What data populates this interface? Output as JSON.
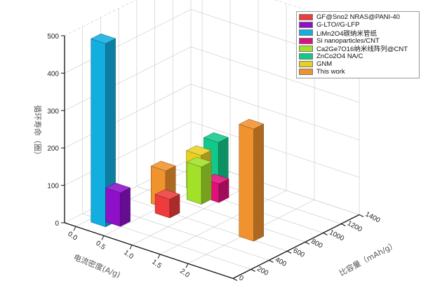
{
  "chart_data": {
    "type": "bar3d",
    "xlabel": "电流密度(A/g)",
    "ylabel": "比容量（mAh/g）",
    "zlabel": "循环寿命（圈）",
    "xlim": [
      -0.2,
      2.8
    ],
    "ylim": [
      0,
      1400
    ],
    "zlim": [
      0,
      500
    ],
    "x_ticks": [
      "0.0",
      "0.5",
      "1.0",
      "1.5",
      "2.0"
    ],
    "y_ticks": [
      "0",
      "200",
      "400",
      "600",
      "800",
      "1000",
      "1200",
      "1400"
    ],
    "z_ticks": [
      "0",
      "100",
      "200",
      "300",
      "400",
      "500"
    ],
    "grid": true,
    "legend_position": "top-right",
    "series": [
      {
        "name": "GF@Sno2 NRAS@PANI-40",
        "color": "#ee3b3b",
        "points": [
          {
            "x": 0.7,
            "y": 580,
            "z": 50
          }
        ]
      },
      {
        "name": "G-LTO//G-LFP",
        "color": "#8e10c8",
        "points": [
          {
            "x": 0.35,
            "y": 250,
            "z": 90
          }
        ]
      },
      {
        "name": "LiMn2O4碳纳米管纸",
        "color": "#12aee0",
        "points": [
          {
            "x": 0.2,
            "y": 180,
            "z": 490
          }
        ]
      },
      {
        "name": "Si nanoparticles/CNT",
        "color": "#e0107a",
        "points": [
          {
            "x": 0.9,
            "y": 1000,
            "z": 50
          }
        ]
      },
      {
        "name": "Ca2Ge7O16纳米线阵列@CNT",
        "color": "#a2e02a",
        "points": [
          {
            "x": 0.75,
            "y": 900,
            "z": 100
          }
        ]
      },
      {
        "name": "ZnCo2O4 NA/C",
        "color": "#12c88a",
        "points": [
          {
            "x": 0.65,
            "y": 1150,
            "z": 130
          }
        ]
      },
      {
        "name": "GNM",
        "color": "#e8d020",
        "points": [
          {
            "x": 0.5,
            "y": 1050,
            "z": 100
          }
        ]
      },
      {
        "name": "This work",
        "color": "#f0922e",
        "points": [
          {
            "x": 0.45,
            "y": 690,
            "z": 100
          },
          {
            "x": 2.1,
            "y": 640,
            "z": 300
          }
        ]
      }
    ]
  }
}
